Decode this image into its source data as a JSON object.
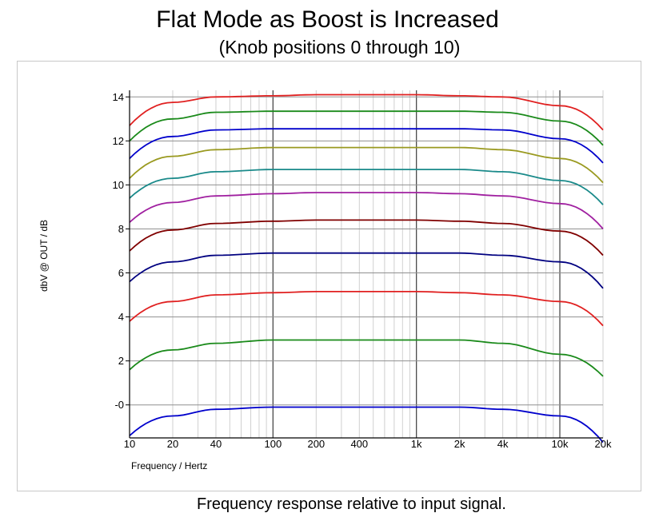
{
  "title": "Flat Mode as Boost is Increased",
  "subtitle": "(Knob positions 0 through 10)",
  "caption": "Frequency response relative to input signal.",
  "chart_data": {
    "type": "line",
    "xlabel": "Frequency / Hertz",
    "ylabel": "dbV @ OUT / dB",
    "x_scale": "log",
    "xlim": [
      10,
      20000
    ],
    "ylim": [
      -1.5,
      14.3
    ],
    "grid": true,
    "x_ticks": [
      {
        "value": 10,
        "label": "10"
      },
      {
        "value": 20,
        "label": "20"
      },
      {
        "value": 40,
        "label": "40"
      },
      {
        "value": 100,
        "label": "100"
      },
      {
        "value": 200,
        "label": "200"
      },
      {
        "value": 400,
        "label": "400"
      },
      {
        "value": 1000,
        "label": "1k"
      },
      {
        "value": 2000,
        "label": "2k"
      },
      {
        "value": 4000,
        "label": "4k"
      },
      {
        "value": 10000,
        "label": "10k"
      },
      {
        "value": 20000,
        "label": "20k"
      }
    ],
    "y_ticks": [
      {
        "value": 0,
        "label": "-0"
      },
      {
        "value": 2,
        "label": "2"
      },
      {
        "value": 4,
        "label": "4"
      },
      {
        "value": 6,
        "label": "6"
      },
      {
        "value": 8,
        "label": "8"
      },
      {
        "value": 10,
        "label": "10"
      },
      {
        "value": 12,
        "label": "12"
      },
      {
        "value": 14,
        "label": "14"
      }
    ],
    "x": [
      10,
      20,
      40,
      100,
      200,
      400,
      1000,
      2000,
      4000,
      10000,
      20000
    ],
    "series": [
      {
        "color": "#0000cc",
        "values": [
          -1.4,
          -0.5,
          -0.2,
          -0.1,
          -0.1,
          -0.1,
          -0.1,
          -0.1,
          -0.2,
          -0.5,
          -1.7
        ]
      },
      {
        "color": "#1a8a1a",
        "values": [
          1.6,
          2.5,
          2.8,
          2.95,
          2.95,
          2.95,
          2.95,
          2.95,
          2.8,
          2.3,
          1.3
        ]
      },
      {
        "color": "#e02020",
        "values": [
          3.8,
          4.7,
          5.0,
          5.1,
          5.15,
          5.15,
          5.15,
          5.1,
          5.0,
          4.7,
          3.6
        ]
      },
      {
        "color": "#000080",
        "values": [
          5.6,
          6.5,
          6.8,
          6.9,
          6.9,
          6.9,
          6.9,
          6.9,
          6.8,
          6.5,
          5.3
        ]
      },
      {
        "color": "#800000",
        "values": [
          7.0,
          7.95,
          8.25,
          8.35,
          8.4,
          8.4,
          8.4,
          8.35,
          8.25,
          7.9,
          6.8
        ]
      },
      {
        "color": "#a020a0",
        "values": [
          8.3,
          9.2,
          9.5,
          9.6,
          9.65,
          9.65,
          9.65,
          9.6,
          9.5,
          9.15,
          8.0
        ]
      },
      {
        "color": "#1a8a8a",
        "values": [
          9.4,
          10.3,
          10.6,
          10.7,
          10.7,
          10.7,
          10.7,
          10.7,
          10.6,
          10.2,
          9.1
        ]
      },
      {
        "color": "#9a9a20",
        "values": [
          10.3,
          11.3,
          11.6,
          11.7,
          11.7,
          11.7,
          11.7,
          11.7,
          11.6,
          11.2,
          10.1
        ]
      },
      {
        "color": "#0000cc",
        "values": [
          11.2,
          12.2,
          12.5,
          12.55,
          12.55,
          12.55,
          12.55,
          12.55,
          12.5,
          12.1,
          11.0
        ]
      },
      {
        "color": "#1a8a1a",
        "values": [
          12.0,
          13.0,
          13.3,
          13.35,
          13.35,
          13.35,
          13.35,
          13.35,
          13.3,
          12.9,
          11.8
        ]
      },
      {
        "color": "#e02020",
        "values": [
          12.7,
          13.75,
          14.0,
          14.05,
          14.1,
          14.1,
          14.1,
          14.05,
          14.0,
          13.6,
          12.5
        ]
      }
    ]
  }
}
